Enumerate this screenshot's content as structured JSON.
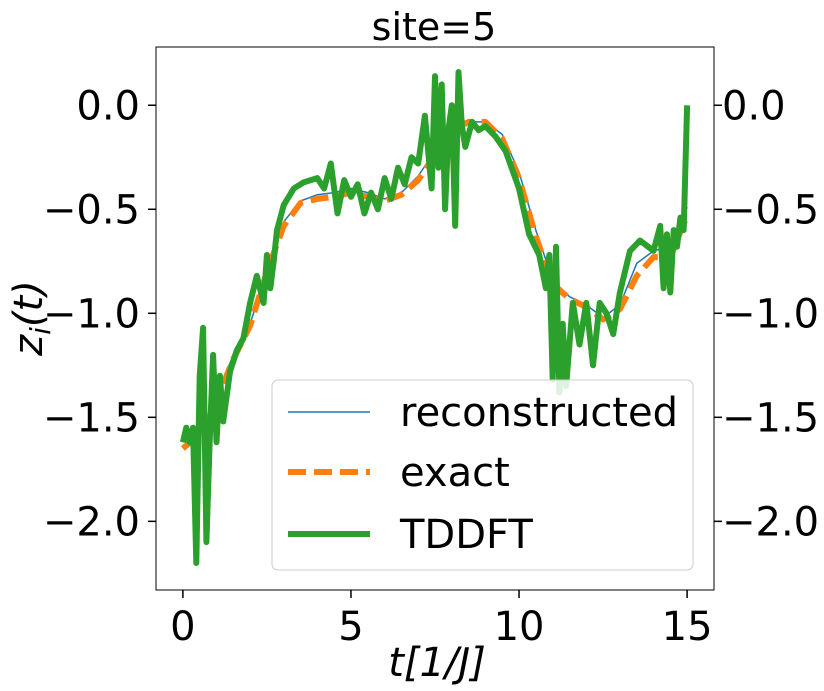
{
  "chart_data": {
    "type": "line",
    "title": "site=5",
    "xlabel": "t[1/J]",
    "ylabel": "z_i(t)",
    "xlim": [
      -0.8,
      15.8
    ],
    "ylim": [
      -2.33,
      0.28
    ],
    "xticks": [
      0,
      5,
      10,
      15
    ],
    "xtick_labels": [
      "0",
      "5",
      "10",
      "15"
    ],
    "yticks": [
      0.0,
      -0.5,
      -1.0,
      -1.5,
      -2.0
    ],
    "ytick_labels": [
      "0.0",
      "−0.5",
      "−1.0",
      "−1.5",
      "−2.0"
    ],
    "right_axis_ticks": true,
    "grid": false,
    "legend": "lower-right",
    "series": [
      {
        "name": "reconstructed",
        "color": "#1f77b4",
        "style": "solid-thin",
        "x": [
          0.0,
          0.5,
          1.0,
          1.5,
          2.0,
          2.5,
          3.0,
          3.5,
          4.0,
          4.5,
          5.0,
          5.5,
          6.0,
          6.5,
          7.0,
          7.5,
          8.0,
          8.5,
          9.0,
          9.5,
          10.0,
          10.5,
          11.0,
          11.5,
          12.0,
          12.5,
          13.0,
          13.5,
          14.0,
          14.5,
          15.0
        ],
        "y": [
          -1.64,
          -1.58,
          -1.4,
          -1.2,
          -1.05,
          -0.8,
          -0.56,
          -0.46,
          -0.43,
          -0.42,
          -0.4,
          -0.42,
          -0.45,
          -0.42,
          -0.34,
          -0.22,
          -0.12,
          -0.08,
          -0.08,
          -0.14,
          -0.32,
          -0.6,
          -0.84,
          -0.92,
          -0.96,
          -1.02,
          -0.96,
          -0.76,
          -0.7,
          -0.68,
          -0.49
        ]
      },
      {
        "name": "exact",
        "color": "#ff7f0e",
        "style": "dashed-thick",
        "x": [
          0.0,
          0.5,
          1.0,
          1.5,
          2.0,
          2.5,
          3.0,
          3.5,
          4.0,
          4.5,
          5.0,
          5.5,
          6.0,
          6.5,
          7.0,
          7.5,
          8.0,
          8.5,
          9.0,
          9.5,
          10.0,
          10.5,
          11.0,
          11.5,
          12.0,
          12.5,
          13.0,
          13.5,
          14.0,
          14.5,
          15.0
        ],
        "y": [
          -1.65,
          -1.58,
          -1.42,
          -1.22,
          -1.06,
          -0.8,
          -0.58,
          -0.47,
          -0.45,
          -0.44,
          -0.42,
          -0.44,
          -0.46,
          -0.43,
          -0.36,
          -0.24,
          -0.12,
          -0.08,
          -0.08,
          -0.16,
          -0.35,
          -0.63,
          -0.86,
          -0.93,
          -0.97,
          -1.03,
          -0.98,
          -0.82,
          -0.73,
          -0.73,
          -0.53
        ]
      },
      {
        "name": "TDDFT",
        "color": "#2ca02c",
        "style": "solid-thick",
        "x": [
          0.0,
          0.1,
          0.2,
          0.3,
          0.4,
          0.5,
          0.6,
          0.7,
          0.8,
          0.9,
          1.0,
          1.1,
          1.2,
          1.4,
          1.6,
          1.8,
          2.0,
          2.2,
          2.4,
          2.5,
          2.6,
          2.7,
          2.8,
          3.0,
          3.3,
          3.6,
          4.0,
          4.2,
          4.4,
          4.6,
          4.8,
          5.0,
          5.2,
          5.4,
          5.6,
          5.8,
          6.0,
          6.2,
          6.4,
          6.6,
          6.8,
          7.0,
          7.2,
          7.4,
          7.5,
          7.6,
          7.7,
          7.8,
          7.9,
          8.0,
          8.1,
          8.2,
          8.3,
          8.4,
          8.6,
          8.8,
          9.0,
          9.3,
          9.6,
          10.0,
          10.3,
          10.6,
          10.8,
          10.9,
          11.0,
          11.1,
          11.2,
          11.3,
          11.4,
          11.6,
          11.8,
          12.0,
          12.2,
          12.4,
          12.6,
          12.8,
          13.0,
          13.3,
          13.6,
          14.0,
          14.2,
          14.3,
          14.4,
          14.5,
          14.6,
          14.7,
          14.8,
          14.9,
          15.0
        ],
        "y": [
          -1.62,
          -1.55,
          -1.62,
          -1.55,
          -2.2,
          -1.3,
          -1.07,
          -2.1,
          -1.6,
          -1.2,
          -1.62,
          -1.3,
          -1.52,
          -1.28,
          -1.18,
          -1.12,
          -0.95,
          -0.82,
          -0.95,
          -0.72,
          -0.88,
          -0.75,
          -0.6,
          -0.48,
          -0.4,
          -0.37,
          -0.35,
          -0.4,
          -0.28,
          -0.52,
          -0.36,
          -0.44,
          -0.38,
          -0.52,
          -0.42,
          -0.5,
          -0.35,
          -0.45,
          -0.3,
          -0.38,
          -0.25,
          -0.28,
          -0.05,
          -0.4,
          0.14,
          -0.3,
          0.1,
          -0.5,
          -0.12,
          0.0,
          -0.58,
          0.16,
          -0.1,
          -0.2,
          -0.08,
          -0.12,
          -0.1,
          -0.15,
          -0.22,
          -0.4,
          -0.62,
          -0.72,
          -0.88,
          -0.72,
          -1.32,
          -0.68,
          -1.38,
          -1.05,
          -1.35,
          -0.95,
          -1.15,
          -0.95,
          -1.25,
          -0.95,
          -1.0,
          -1.1,
          -0.9,
          -0.7,
          -0.65,
          -0.7,
          -0.58,
          -0.88,
          -0.62,
          -0.9,
          -0.6,
          -0.68,
          -0.54,
          -0.6,
          0.0
        ]
      }
    ]
  }
}
